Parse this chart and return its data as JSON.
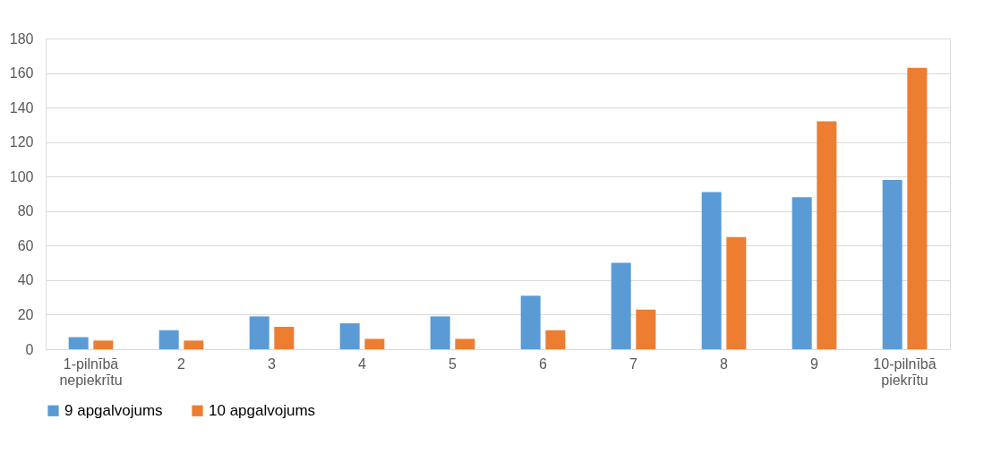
{
  "chart_data": {
    "type": "bar",
    "categories": [
      "1-pilnībā nepiekrītu",
      "2",
      "3",
      "4",
      "5",
      "6",
      "7",
      "8",
      "9",
      "10-pilnībā piekrītu"
    ],
    "series": [
      {
        "name": "9 apgalvojums",
        "color": "#5b9bd5",
        "values": [
          7,
          11,
          19,
          15,
          19,
          31,
          50,
          91,
          88,
          98
        ]
      },
      {
        "name": "10 apgalvojums",
        "color": "#ed7d31",
        "values": [
          5,
          5,
          13,
          6,
          6,
          11,
          23,
          65,
          132,
          163
        ]
      }
    ],
    "ylim": [
      0,
      180
    ],
    "yticks": [
      0,
      20,
      40,
      60,
      80,
      100,
      120,
      140,
      160,
      180
    ],
    "grid": "y",
    "legend": "bottom"
  }
}
